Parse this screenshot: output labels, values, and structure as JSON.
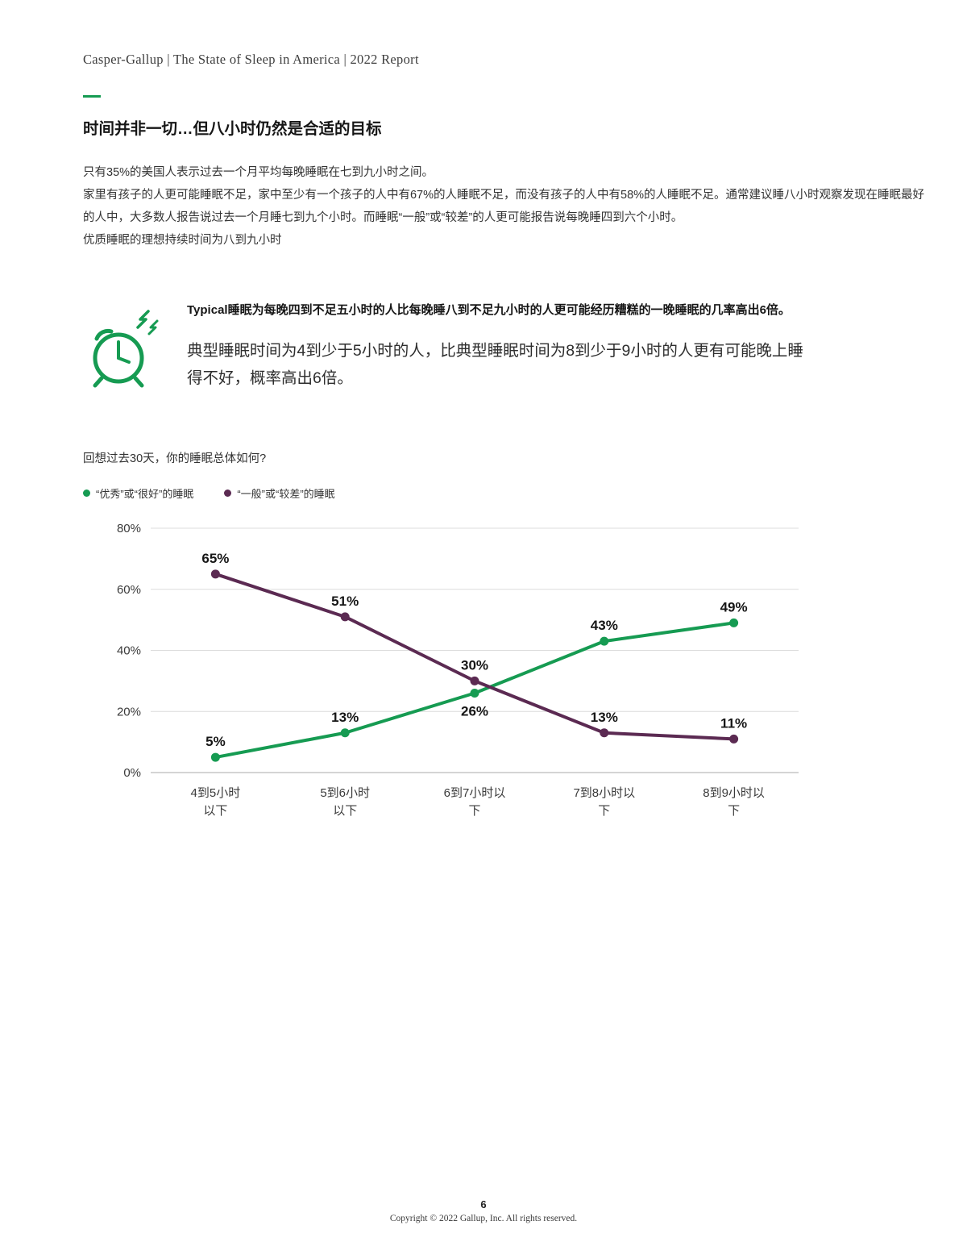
{
  "page": {
    "header": "Casper-Gallup | The State of Sleep in America  |  2022 Report",
    "title": "时间并非一切…但八小时仍然是合适的目标",
    "paragraphs": [
      "只有35%的美国人表示过去一个月平均每晚睡眠在七到九小时之间。",
      "家里有孩子的人更可能睡眠不足，家中至少有一个孩子的人中有67%的人睡眠不足，而没有孩子的人中有58%的人睡眠不足。通常建议睡八小时观察发现在睡眠最好的人中，大多数人报告说过去一个月睡七到九个小时。而睡眠“一般”或“较差”的人更可能报告说每晚睡四到六个小时。",
      "优质睡眠的理想持续时间为八到九小时"
    ],
    "callout": {
      "bold_text": "Typical睡眠为每晚四到不足五小时的人比每晚睡八到不足九小时的人更可能经历糟糕的一晚睡眠的几率高出6倍。",
      "body_text": "典型睡眠时间为4到少于5小时的人，比典型睡眠时间为8到少于9小时的人更有可能晚上睡得不好，概率高出6倍。"
    },
    "question": "回想过去30天，你的睡眠总体如何?",
    "footer": {
      "page_number": "6",
      "copyright": "Copyright © 2022 Gallup, Inc. All rights reserved."
    }
  },
  "colors": {
    "green": "#169b52",
    "purple": "#5b2a52",
    "grid": "#dcdcdc",
    "axis_text": "#3a3a3a",
    "data_label": "#161616"
  },
  "chart_data": {
    "type": "line",
    "title": "回想过去30天，你的睡眠总体如何?",
    "categories": [
      "4到5小时\n以下",
      "5到6小时\n以下",
      "6到7小时以\n下",
      "7到8小时以\n下",
      "8到9小时以\n下"
    ],
    "series": [
      {
        "name": "“优秀”或“很好”的睡眠",
        "color": "#169b52",
        "values": [
          5,
          13,
          26,
          43,
          49
        ],
        "label_positions": [
          "above",
          "above",
          "below",
          "above",
          "above"
        ]
      },
      {
        "name": "“一般”或“较差”的睡眠",
        "color": "#5b2a52",
        "values": [
          65,
          51,
          30,
          13,
          11
        ],
        "label_positions": [
          "above",
          "above",
          "above",
          "above",
          "above"
        ]
      }
    ],
    "xlabel": "",
    "ylabel": "",
    "ylim": [
      0,
      80
    ],
    "yticks": [
      0,
      20,
      40,
      60,
      80
    ],
    "ytick_labels": [
      "0%",
      "20%",
      "40%",
      "60%",
      "80%"
    ],
    "grid": true,
    "legend_position": "top-left"
  }
}
